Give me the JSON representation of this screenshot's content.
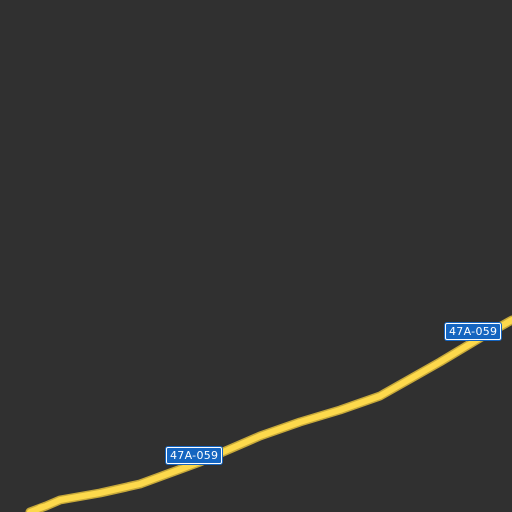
{
  "map": {
    "background_color": "#303030",
    "road_color": "#fdd94c",
    "road_edge_color": "#c7a93a",
    "shield_color": "#1565c0",
    "shield_text_color": "#ffffff",
    "roads": [
      {
        "type": "highway",
        "shields": [
          {
            "ref": "47A-059"
          },
          {
            "ref": "47A-059"
          }
        ]
      }
    ]
  }
}
